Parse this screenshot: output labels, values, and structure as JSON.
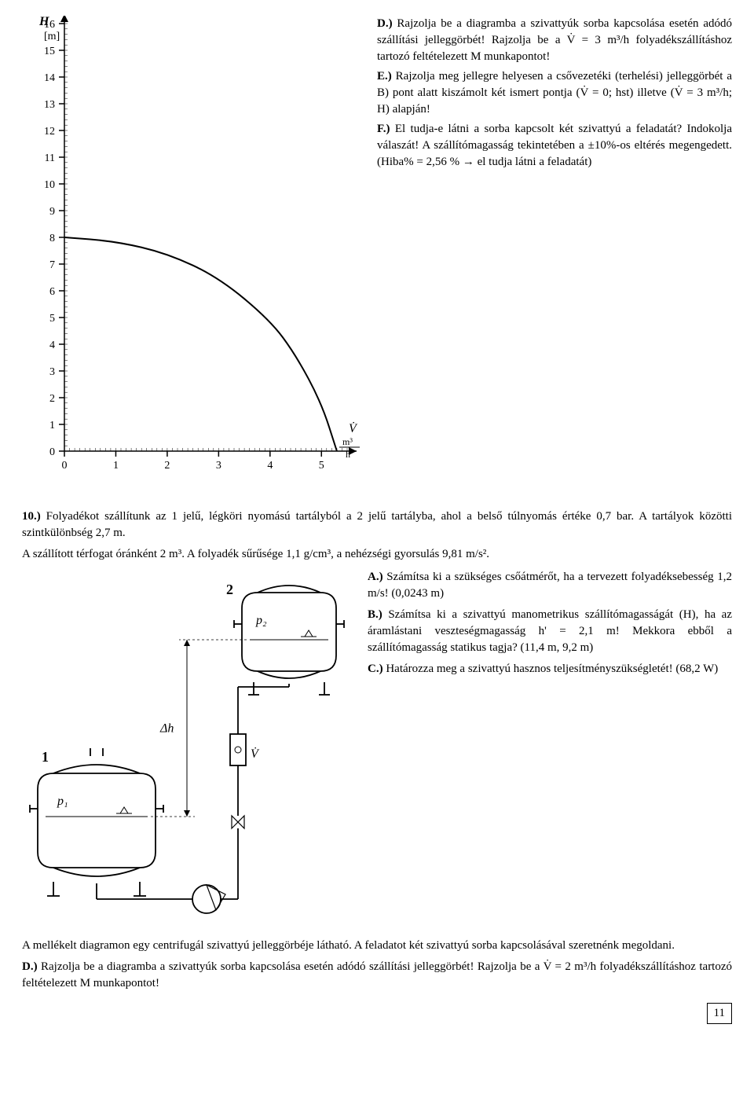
{
  "chart": {
    "type": "line",
    "x_axis_label": "V̇",
    "x_axis_unit": "m³/h",
    "y_axis_label": "H",
    "y_axis_unit": "[m]",
    "x_ticks": [
      0,
      1,
      2,
      3,
      4,
      5
    ],
    "y_ticks": [
      0,
      1,
      2,
      3,
      4,
      5,
      6,
      7,
      8,
      9,
      10,
      11,
      12,
      13,
      14,
      15,
      16
    ],
    "xlim": [
      0,
      5.5
    ],
    "ylim": [
      0,
      16
    ],
    "curve_points": [
      [
        0,
        8
      ],
      [
        1,
        7.85
      ],
      [
        2,
        7.4
      ],
      [
        3,
        6.5
      ],
      [
        4,
        4.9
      ],
      [
        4.5,
        3.6
      ],
      [
        5,
        1.8
      ],
      [
        5.3,
        0
      ]
    ],
    "line_color": "#000000",
    "line_width": 2,
    "tick_color": "#000000",
    "axis_color": "#000000",
    "background_color": "#ffffff",
    "label_fontsize": 16,
    "tick_fontsize": 14,
    "grid_minor": true,
    "minor_step_x": 0.1,
    "minor_step_y": 0.2
  },
  "section_D": {
    "label": "D.)",
    "text": "Rajzolja be a diagramba a szivattyúk sorba kapcsolása esetén adódó szállítási jelleggörbét! Rajzolja be a V̇ = 3 m³/h folyadékszállításhoz tartozó feltételezett M munkapontot!"
  },
  "section_E": {
    "label": "E.)",
    "text": "Rajzolja meg jellegre helyesen a csővezetéki (terhelési) jelleggörbét a B) pont alatt kiszámolt két ismert pontja (V̇ = 0; hst) illetve (V̇ = 3 m³/h; H) alapján!"
  },
  "section_F": {
    "label": "F.)",
    "text": "El tudja-e látni a sorba kapcsolt két szivattyú a feladatát? Indokolja válaszát! A szállítómagasság tekintetében a ±10%-os eltérés megengedett. (Hiba% = 2,56 % → el tudja látni a feladatát)"
  },
  "problem_10": {
    "number": "10.)",
    "intro": "Folyadékot szállítunk az 1 jelű, légköri nyomású tartályból a 2 jelű tartályba, ahol a belső túlnyomás értéke 0,7 bar. A tartályok közötti szintkülönbség 2,7 m.",
    "line2": "A szállított térfogat óránként 2 m³. A folyadék sűrűsége 1,1 g/cm³, a nehézségi gyorsulás 9,81 m/s²."
  },
  "section_10A": {
    "label": "A.)",
    "text": "Számítsa ki a szükséges csőátmérőt, ha a tervezett folyadéksebesség 1,2 m/s! (0,0243 m)"
  },
  "section_10B": {
    "label": "B.)",
    "text": "Számítsa ki a szivattyú manometrikus szállítómagasságát (H), ha az áramlástani veszteségmagasság h' = 2,1 m! Mekkora ebből a szállítómagasság statikus tagja? (11,4 m, 9,2 m)"
  },
  "section_10C": {
    "label": "C.)",
    "text": "Határozza meg a szivattyú hasznos teljesítményszükségletét! (68,2 W)"
  },
  "schematic": {
    "node_1_label": "1",
    "node_2_label": "2",
    "p1_label": "p₁",
    "p2_label": "p₂",
    "dh_label": "Δh",
    "vdot_label": "V̇",
    "line_color": "#000000",
    "bg_color": "#ffffff"
  },
  "footer": {
    "line1": "A mellékelt diagramon egy centrifugál szivattyú jelleggörbéje látható. A feladatot két szivattyú sorba kapcsolásával szeretnénk megoldani.",
    "d_label": "D.)",
    "d_text": "Rajzolja be a diagramba a szivattyúk sorba kapcsolása esetén adódó szállítási jelleggörbét! Rajzolja be a V̇ = 2 m³/h folyadékszállításhoz tartozó feltételezett M munkapontot!"
  },
  "page_number": "11"
}
